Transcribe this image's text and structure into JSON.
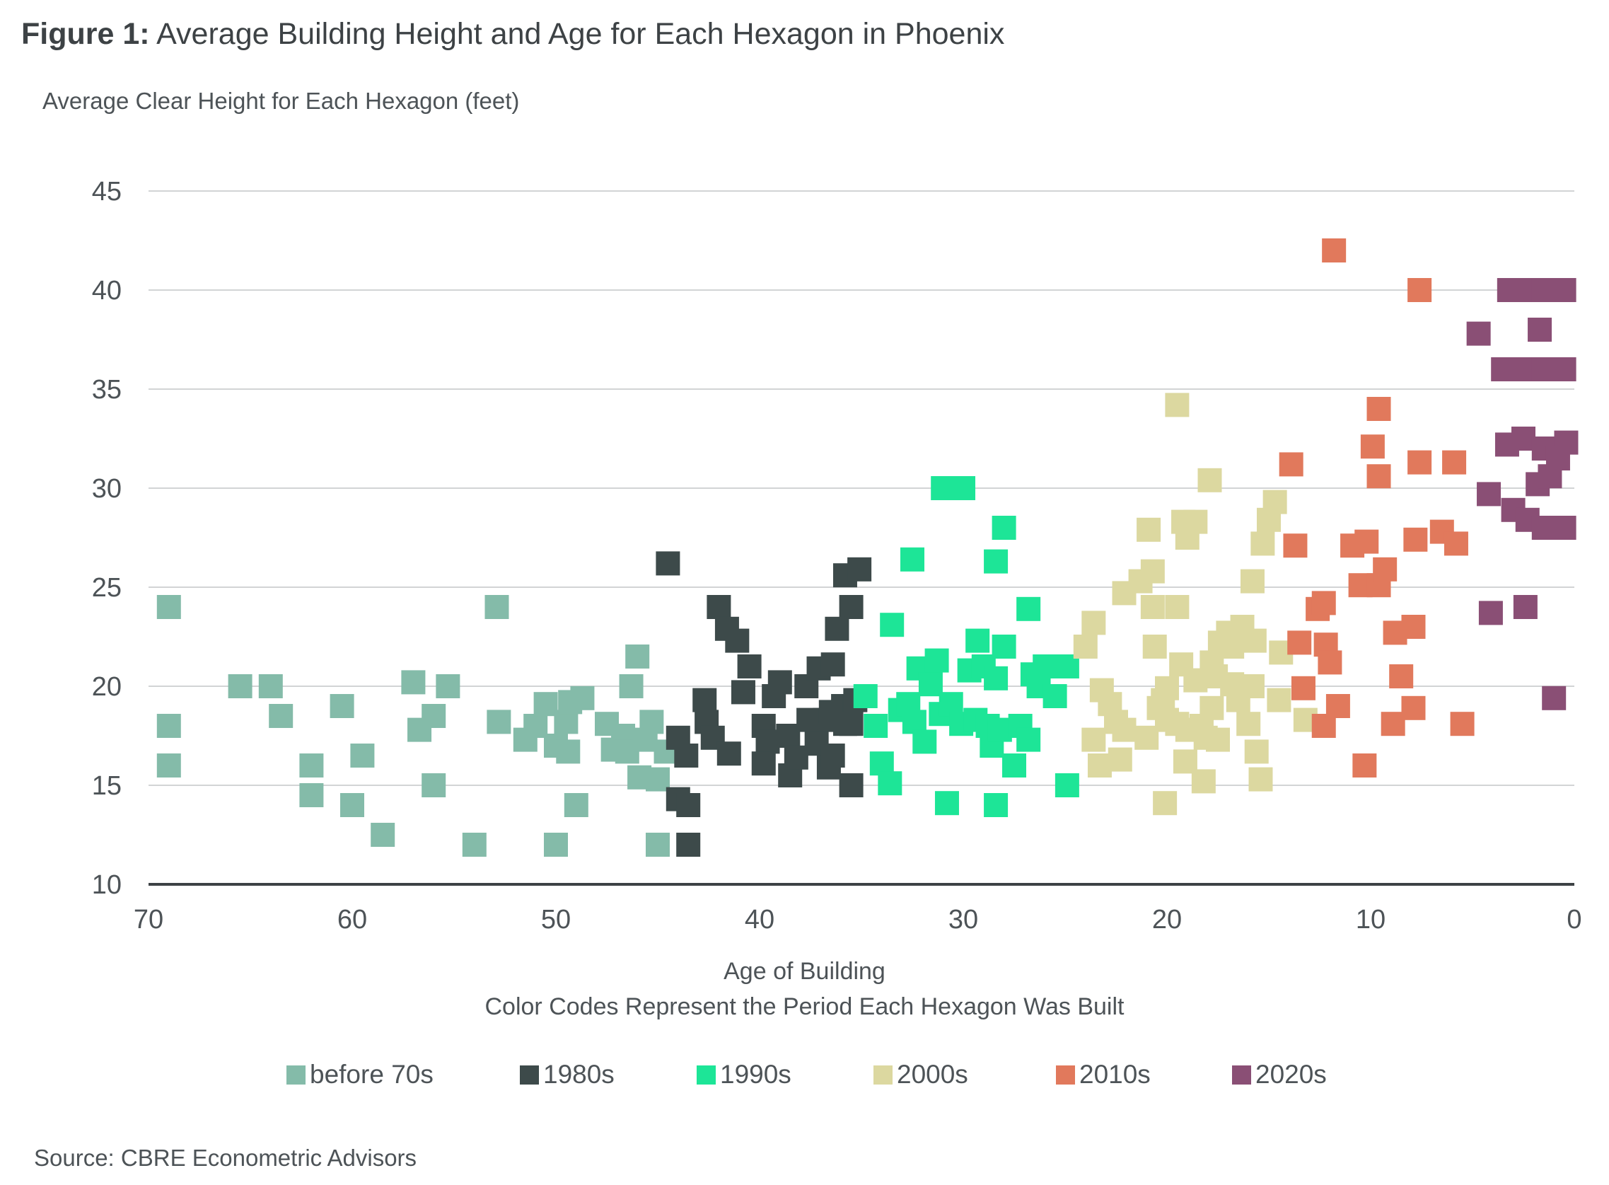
{
  "title": {
    "prefix": "Figure 1:",
    "text": " Average Building Height and Age for Each Hexagon in Phoenix"
  },
  "source": "Source: CBRE Econometric Advisors",
  "chart_data": {
    "type": "scatter",
    "title": "Figure 1: Average Building Height and Age for Each Hexagon in Phoenix",
    "ylabel": "Average Clear Height for Each Hexagon (feet)",
    "xlabel": "Age of Building",
    "subtitle": "Color Codes Represent the Period Each Hexagon Was Built",
    "xlim": [
      70,
      0
    ],
    "ylim": [
      10,
      45
    ],
    "xticks": [
      70,
      60,
      50,
      40,
      30,
      20,
      10,
      0
    ],
    "yticks": [
      10,
      15,
      20,
      25,
      30,
      35,
      40,
      45
    ],
    "grid": true,
    "legend_position": "bottom",
    "series": [
      {
        "name": "before 70s",
        "color": "#84bba9",
        "points": [
          [
            69,
            24
          ],
          [
            69,
            18
          ],
          [
            69,
            16
          ],
          [
            65.5,
            20
          ],
          [
            64,
            20
          ],
          [
            63.5,
            18.5
          ],
          [
            62,
            16
          ],
          [
            62,
            14.5
          ],
          [
            60.5,
            19
          ],
          [
            60,
            14
          ],
          [
            59.5,
            16.5
          ],
          [
            58.5,
            12.5
          ],
          [
            57,
            20.2
          ],
          [
            56.7,
            17.8
          ],
          [
            56,
            18.5
          ],
          [
            56,
            15
          ],
          [
            55.3,
            20
          ],
          [
            54,
            12
          ],
          [
            52.9,
            24
          ],
          [
            52.8,
            18.2
          ],
          [
            51.5,
            17.3
          ],
          [
            51,
            18
          ],
          [
            50.5,
            19.1
          ],
          [
            50,
            17
          ],
          [
            49.5,
            18.2
          ],
          [
            49.3,
            19.2
          ],
          [
            49.4,
            16.7
          ],
          [
            48.7,
            19.4
          ],
          [
            49,
            14
          ],
          [
            50,
            12
          ],
          [
            47.5,
            18.1
          ],
          [
            47.2,
            16.8
          ],
          [
            46.7,
            17.5
          ],
          [
            46.5,
            16.7
          ],
          [
            46.3,
            20
          ],
          [
            46,
            21.5
          ],
          [
            45.9,
            15.4
          ],
          [
            45.6,
            17.3
          ],
          [
            45.3,
            18.2
          ],
          [
            45,
            15.3
          ],
          [
            45,
            12
          ],
          [
            44.6,
            16.7
          ]
        ]
      },
      {
        "name": "1980s",
        "color": "#3d4a4a",
        "points": [
          [
            44.5,
            26.2
          ],
          [
            44,
            17.4
          ],
          [
            43.6,
            16.5
          ],
          [
            44,
            14.3
          ],
          [
            43.5,
            14
          ],
          [
            43.5,
            12
          ],
          [
            42.7,
            19.3
          ],
          [
            42.6,
            18.2
          ],
          [
            42.3,
            17.4
          ],
          [
            42,
            24
          ],
          [
            41.6,
            22.9
          ],
          [
            41.5,
            16.6
          ],
          [
            41.1,
            22.3
          ],
          [
            40.8,
            19.7
          ],
          [
            40.5,
            21
          ],
          [
            39.8,
            18
          ],
          [
            39.6,
            17.2
          ],
          [
            39.8,
            16.1
          ],
          [
            39.3,
            19.5
          ],
          [
            39,
            20.2
          ],
          [
            38.6,
            17.5
          ],
          [
            38.5,
            15.5
          ],
          [
            38.2,
            16.4
          ],
          [
            37.7,
            20
          ],
          [
            37.6,
            18.3
          ],
          [
            37.2,
            17.1
          ],
          [
            37.1,
            20.9
          ],
          [
            36.8,
            18.3
          ],
          [
            36.6,
            15.9
          ],
          [
            36.4,
            16.5
          ],
          [
            36.4,
            21.1
          ],
          [
            35.9,
            19
          ],
          [
            35.8,
            18.1
          ],
          [
            36.5,
            18.7
          ],
          [
            35.8,
            25.6
          ],
          [
            36.2,
            22.9
          ],
          [
            35.5,
            24
          ],
          [
            35.1,
            25.9
          ],
          [
            35.3,
            19.3
          ],
          [
            35.5,
            18.1
          ],
          [
            35.5,
            15
          ]
        ]
      },
      {
        "name": "1990s",
        "color": "#1de597",
        "points": [
          [
            34.8,
            19.5
          ],
          [
            34.3,
            18
          ],
          [
            34,
            16.1
          ],
          [
            33.6,
            15.1
          ],
          [
            33.5,
            23.1
          ],
          [
            33.1,
            18.8
          ],
          [
            32.7,
            19.1
          ],
          [
            32.5,
            26.4
          ],
          [
            32.4,
            18.2
          ],
          [
            32.2,
            20.9
          ],
          [
            31.9,
            17.2
          ],
          [
            31.6,
            20.1
          ],
          [
            31.3,
            21.3
          ],
          [
            31.1,
            18.6
          ],
          [
            30.6,
            19.1
          ],
          [
            31,
            30
          ],
          [
            30,
            30
          ],
          [
            30.8,
            14.1
          ],
          [
            30.1,
            18.1
          ],
          [
            29.7,
            20.8
          ],
          [
            29.4,
            18.3
          ],
          [
            29.3,
            22.3
          ],
          [
            29,
            21
          ],
          [
            28.8,
            18
          ],
          [
            28.6,
            17
          ],
          [
            28.4,
            26.3
          ],
          [
            28.4,
            20.4
          ],
          [
            28.2,
            17.8
          ],
          [
            28,
            22
          ],
          [
            28.4,
            14
          ],
          [
            28,
            28
          ],
          [
            27.5,
            16
          ],
          [
            27.2,
            18
          ],
          [
            26.8,
            17.3
          ],
          [
            26.8,
            23.9
          ],
          [
            26.6,
            20.6
          ],
          [
            26.3,
            20
          ],
          [
            26,
            21
          ],
          [
            25.5,
            19.5
          ],
          [
            24.9,
            21
          ],
          [
            24.9,
            15
          ]
        ]
      },
      {
        "name": "2000s",
        "color": "#dcd8a0",
        "points": [
          [
            24,
            22
          ],
          [
            23.6,
            23.2
          ],
          [
            23.6,
            17.3
          ],
          [
            23.3,
            16
          ],
          [
            23.2,
            19.8
          ],
          [
            22.8,
            19.1
          ],
          [
            22.5,
            18.2
          ],
          [
            22.3,
            16.3
          ],
          [
            22.1,
            17.8
          ],
          [
            22.1,
            24.7
          ],
          [
            21.3,
            25.3
          ],
          [
            21,
            17.4
          ],
          [
            20.9,
            27.9
          ],
          [
            20.7,
            25.8
          ],
          [
            20.7,
            24
          ],
          [
            20.6,
            22
          ],
          [
            20.2,
            19.3
          ],
          [
            20.4,
            18.9
          ],
          [
            20,
            19.9
          ],
          [
            20,
            18.3
          ],
          [
            20.1,
            14.1
          ],
          [
            19.5,
            18.1
          ],
          [
            19.5,
            24
          ],
          [
            19.3,
            21.1
          ],
          [
            19.1,
            16.2
          ],
          [
            19,
            17.8
          ],
          [
            19.5,
            34.2
          ],
          [
            19.2,
            28.3
          ],
          [
            19,
            27.5
          ],
          [
            18.6,
            28.3
          ],
          [
            18.6,
            20.3
          ],
          [
            18.3,
            18
          ],
          [
            18.1,
            17.4
          ],
          [
            18.2,
            15.2
          ],
          [
            17.9,
            30.4
          ],
          [
            17.8,
            21.2
          ],
          [
            17.8,
            18.9
          ],
          [
            17.6,
            20.5
          ],
          [
            17.5,
            17.3
          ],
          [
            17.4,
            22.2
          ],
          [
            17,
            22.7
          ],
          [
            16.8,
            22
          ],
          [
            16.8,
            20.1
          ],
          [
            16.5,
            19.3
          ],
          [
            16.3,
            23
          ],
          [
            16,
            18.1
          ],
          [
            15.8,
            25.3
          ],
          [
            15.7,
            22.3
          ],
          [
            15.6,
            16.7
          ],
          [
            15.4,
            15.3
          ],
          [
            15.8,
            20
          ],
          [
            15.3,
            27.2
          ],
          [
            15,
            28.4
          ],
          [
            14.7,
            29.3
          ],
          [
            14.5,
            19.3
          ],
          [
            14.4,
            21.7
          ],
          [
            13.2,
            18.3
          ]
        ]
      },
      {
        "name": "2010s",
        "color": "#e1795c",
        "points": [
          [
            13.9,
            31.2
          ],
          [
            13.7,
            27.1
          ],
          [
            13.5,
            22.2
          ],
          [
            13.3,
            19.9
          ],
          [
            12.6,
            23.9
          ],
          [
            12.3,
            24.2
          ],
          [
            12.2,
            22.1
          ],
          [
            12,
            21.2
          ],
          [
            12.3,
            18
          ],
          [
            11.8,
            42
          ],
          [
            11.6,
            19
          ],
          [
            10.9,
            27.1
          ],
          [
            10.5,
            25.1
          ],
          [
            10.2,
            27.3
          ],
          [
            10.3,
            16
          ],
          [
            9.6,
            25.1
          ],
          [
            9.9,
            32.1
          ],
          [
            9.6,
            30.6
          ],
          [
            9.6,
            34
          ],
          [
            9.3,
            25.9
          ],
          [
            8.8,
            22.7
          ],
          [
            8.9,
            18.1
          ],
          [
            8.5,
            20.5
          ],
          [
            7.9,
            23
          ],
          [
            7.8,
            27.4
          ],
          [
            7.9,
            18.9
          ],
          [
            7.6,
            40
          ],
          [
            7.6,
            31.3
          ],
          [
            6.5,
            27.8
          ],
          [
            5.9,
            31.3
          ],
          [
            5.8,
            27.2
          ],
          [
            5.5,
            18.1
          ]
        ]
      },
      {
        "name": "2020s",
        "color": "#8a4f75",
        "points": [
          [
            4.7,
            37.8
          ],
          [
            4.2,
            29.7
          ],
          [
            4.1,
            23.7
          ],
          [
            3.2,
            40
          ],
          [
            2.5,
            40
          ],
          [
            1.5,
            40
          ],
          [
            0.5,
            40
          ],
          [
            3.5,
            36
          ],
          [
            2.5,
            36
          ],
          [
            1.5,
            36
          ],
          [
            0.5,
            36
          ],
          [
            3.3,
            32.2
          ],
          [
            2.5,
            32.5
          ],
          [
            1.5,
            32
          ],
          [
            0.4,
            32.3
          ],
          [
            3,
            28.9
          ],
          [
            2.3,
            28.4
          ],
          [
            1.8,
            30.2
          ],
          [
            1.2,
            30.6
          ],
          [
            0.8,
            31.5
          ],
          [
            1.5,
            28
          ],
          [
            0.5,
            28
          ],
          [
            2.4,
            24
          ],
          [
            1.7,
            38
          ],
          [
            1,
            19.4
          ]
        ]
      }
    ]
  }
}
